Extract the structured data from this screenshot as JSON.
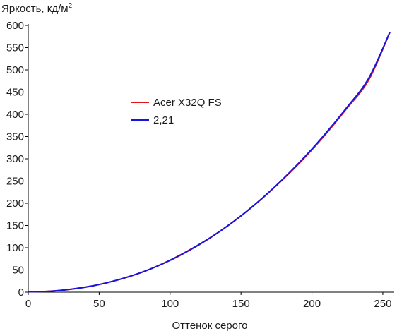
{
  "chart_data": {
    "type": "line",
    "ylabel": "Яркость, кд/м",
    "ylabel_sup": "2",
    "xlabel": "Оттенок серого",
    "xlim": [
      0,
      255
    ],
    "ylim": [
      0,
      600
    ],
    "xticks": [
      0,
      50,
      100,
      150,
      200,
      250
    ],
    "yticks": [
      0,
      50,
      100,
      150,
      200,
      250,
      300,
      350,
      400,
      450,
      500,
      550,
      600
    ],
    "grid": false,
    "legend_position": "center-left",
    "series": [
      {
        "name": "Acer X32Q FS",
        "color": "#e8141b",
        "x": [
          0,
          16,
          32,
          48,
          64,
          80,
          96,
          112,
          128,
          144,
          160,
          176,
          192,
          208,
          224,
          240,
          255
        ],
        "y": [
          0.9,
          2.3,
          7.5,
          16,
          28.5,
          44.5,
          66,
          92,
          122,
          157,
          197.5,
          243,
          293,
          349,
          411,
          477,
          585
        ]
      },
      {
        "name": "2,21",
        "color": "#1414e0",
        "x": [
          0,
          16,
          32,
          48,
          64,
          80,
          96,
          112,
          128,
          144,
          160,
          176,
          192,
          208,
          224,
          240,
          255
        ],
        "y": [
          0.9,
          2.2,
          7.3,
          15.8,
          28.3,
          44.7,
          65.5,
          91.2,
          121.6,
          157,
          197.5,
          243.5,
          294.5,
          351,
          413,
          481,
          585
        ]
      }
    ]
  }
}
